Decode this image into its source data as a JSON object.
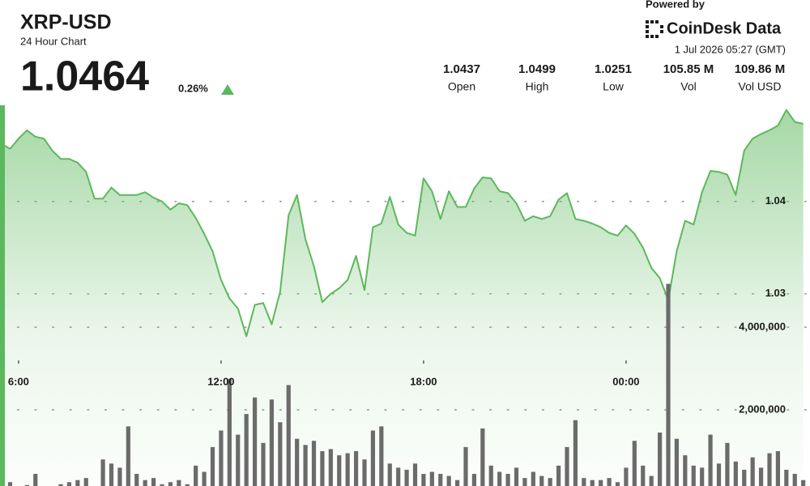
{
  "header": {
    "title": "XRP-USD",
    "subtitle": "24 Hour Chart",
    "price": "1.0464",
    "change": "0.26%",
    "stats": [
      {
        "value": "1.0437",
        "label": "Open"
      },
      {
        "value": "1.0499",
        "label": "High"
      },
      {
        "value": "1.0251",
        "label": "Low"
      },
      {
        "value": "105.85 M",
        "label": "Vol"
      },
      {
        "value": "109.86 M",
        "label": "Vol USD"
      }
    ],
    "powered_by": "Powered by",
    "brand": "CoinDesk Data",
    "timestamp": "1 Jul 2026 05:27 (GMT)"
  },
  "chart_data": [
    {
      "type": "area",
      "color": "#5cb85c",
      "grid": true,
      "xlim": [
        5.45,
        29.45
      ],
      "xticks": [
        {
          "value": 6,
          "label": "6:00"
        },
        {
          "value": 12,
          "label": "12:00"
        },
        {
          "value": 18,
          "label": "18:00"
        },
        {
          "value": 24,
          "label": "00:00"
        }
      ],
      "ylim": [
        1.0092,
        1.0618
      ],
      "yticks": [
        1.03,
        1.04
      ],
      "x": [
        5.5,
        5.75,
        6,
        6.25,
        6.5,
        6.75,
        7,
        7.25,
        7.5,
        7.75,
        8,
        8.25,
        8.5,
        8.75,
        9,
        9.25,
        9.5,
        9.75,
        10,
        10.25,
        10.5,
        10.75,
        11,
        11.25,
        11.5,
        11.75,
        12,
        12.25,
        12.5,
        12.75,
        13,
        13.25,
        13.5,
        13.75,
        14,
        14.25,
        14.5,
        14.75,
        15,
        15.25,
        15.5,
        15.75,
        16,
        16.25,
        16.5,
        16.75,
        17,
        17.25,
        17.5,
        17.75,
        18,
        18.25,
        18.5,
        18.75,
        19,
        19.25,
        19.5,
        19.75,
        20,
        20.25,
        20.5,
        20.75,
        21,
        21.25,
        21.5,
        21.75,
        22,
        22.25,
        22.5,
        22.75,
        23,
        23.25,
        23.5,
        23.75,
        24,
        24.25,
        24.5,
        24.75,
        25,
        25.25,
        25.5,
        25.75,
        26,
        26.25,
        26.5,
        26.75,
        27,
        27.25,
        27.5,
        27.75,
        28,
        28.25,
        28.5,
        28.75,
        29,
        29.25
      ],
      "values": [
        1.0462,
        1.0457,
        1.0468,
        1.0477,
        1.047,
        1.0468,
        1.0455,
        1.0446,
        1.0446,
        1.0442,
        1.0432,
        1.0403,
        1.0403,
        1.0415,
        1.0407,
        1.0407,
        1.0407,
        1.041,
        1.0404,
        1.04,
        1.0391,
        1.0398,
        1.0396,
        1.0382,
        1.0365,
        1.0346,
        1.0315,
        1.0295,
        1.0284,
        1.0254,
        1.0288,
        1.029,
        1.0267,
        1.0302,
        1.0385,
        1.0407,
        1.0359,
        1.033,
        1.0291,
        1.03,
        1.0306,
        1.0315,
        1.0341,
        1.0304,
        1.0372,
        1.0376,
        1.0405,
        1.0375,
        1.0366,
        1.0363,
        1.0425,
        1.0411,
        1.0381,
        1.0411,
        1.0394,
        1.0394,
        1.0414,
        1.0426,
        1.0425,
        1.0411,
        1.0409,
        1.0398,
        1.0379,
        1.0384,
        1.0381,
        1.0384,
        1.0402,
        1.0409,
        1.0381,
        1.0379,
        1.0376,
        1.0372,
        1.0366,
        1.0363,
        1.0374,
        1.0365,
        1.035,
        1.0328,
        1.0317,
        1.0293,
        1.0346,
        1.0379,
        1.0375,
        1.041,
        1.0433,
        1.0432,
        1.0429,
        1.0407,
        1.0455,
        1.0468,
        1.0473,
        1.0477,
        1.0482,
        1.0499,
        1.0486,
        1.0484
      ]
    },
    {
      "type": "bar",
      "color": "#6b6b6b",
      "grid": true,
      "xlim": [
        5.45,
        29.45
      ],
      "ylim": [
        0,
        11920000
      ],
      "yticks": [
        {
          "value": 2000000,
          "label": "2,000,000"
        },
        {
          "value": 4000000,
          "label": "4,000,000"
        }
      ],
      "x": [
        5.5,
        5.75,
        6,
        6.25,
        6.5,
        6.75,
        7,
        7.25,
        7.5,
        7.75,
        8,
        8.25,
        8.5,
        8.75,
        9,
        9.25,
        9.5,
        9.75,
        10,
        10.25,
        10.5,
        10.75,
        11,
        11.25,
        11.5,
        11.75,
        12,
        12.25,
        12.5,
        12.75,
        13,
        13.25,
        13.5,
        13.75,
        14,
        14.25,
        14.5,
        14.75,
        15,
        15.25,
        15.5,
        15.75,
        16,
        16.25,
        16.5,
        16.75,
        17,
        17.25,
        17.5,
        17.75,
        18,
        18.25,
        18.5,
        18.75,
        19,
        19.25,
        19.5,
        19.75,
        20,
        20.25,
        20.5,
        20.75,
        21,
        21.25,
        21.5,
        21.75,
        22,
        22.25,
        22.5,
        22.75,
        23,
        23.25,
        23.5,
        23.75,
        24,
        24.25,
        24.5,
        24.75,
        25,
        25.25,
        25.5,
        25.75,
        26,
        26.25,
        26.5,
        26.75,
        27,
        27.25,
        27.5,
        27.75,
        28,
        28.25,
        28.5,
        28.75,
        29,
        29.25
      ],
      "values": [
        150000,
        250000,
        120000,
        180000,
        450000,
        100000,
        150000,
        200000,
        250000,
        300000,
        350000,
        150000,
        800000,
        700000,
        600000,
        1600000,
        450000,
        300000,
        350000,
        200000,
        250000,
        300000,
        200000,
        650000,
        500000,
        1100000,
        1500000,
        2750000,
        1400000,
        1900000,
        2300000,
        1200000,
        2250000,
        1700000,
        2600000,
        1300000,
        1150000,
        1250000,
        1000000,
        1050000,
        900000,
        950000,
        1000000,
        800000,
        1500000,
        1600000,
        700000,
        600000,
        550000,
        700000,
        450000,
        500000,
        450000,
        400000,
        300000,
        1100000,
        450000,
        1550000,
        650000,
        500000,
        450000,
        600000,
        350000,
        500000,
        400000,
        350000,
        650000,
        1100000,
        1750000,
        350000,
        300000,
        300000,
        350000,
        250000,
        600000,
        1250000,
        650000,
        400000,
        1450000,
        5050000,
        1300000,
        900000,
        650000,
        600000,
        1400000,
        700000,
        1200000,
        750000,
        550000,
        850000,
        600000,
        950000,
        1000000,
        550000,
        450000,
        300000
      ]
    }
  ]
}
